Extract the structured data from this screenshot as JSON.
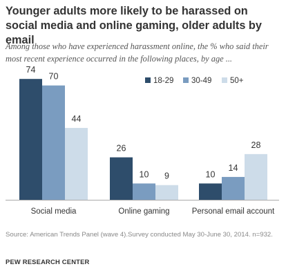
{
  "title": "Younger adults more likely to be harassed on social media and online gaming, older adults by email",
  "subtitle": "Among those who have experienced harassment online, the % who said their most recent experience occurred in the following places, by age ...",
  "source": "Source: American Trends Panel (wave 4).Survey conducted May 30-June 30, 2014. n=932.",
  "brand": "PEW RESEARCH CENTER",
  "chart_data": {
    "type": "bar",
    "categories": [
      "Social media",
      "Online gaming",
      "Personal email account"
    ],
    "series": [
      {
        "name": "18-29",
        "values": [
          74,
          26,
          10
        ],
        "color": "#2e4d6b"
      },
      {
        "name": "30-49",
        "values": [
          70,
          10,
          14
        ],
        "color": "#7a9cc0"
      },
      {
        "name": "50+",
        "values": [
          44,
          9,
          28
        ],
        "color": "#cddce9"
      }
    ],
    "ylim": [
      0,
      80
    ],
    "legend_position": "top-right",
    "grid": false,
    "xlabel": "",
    "ylabel": ""
  }
}
